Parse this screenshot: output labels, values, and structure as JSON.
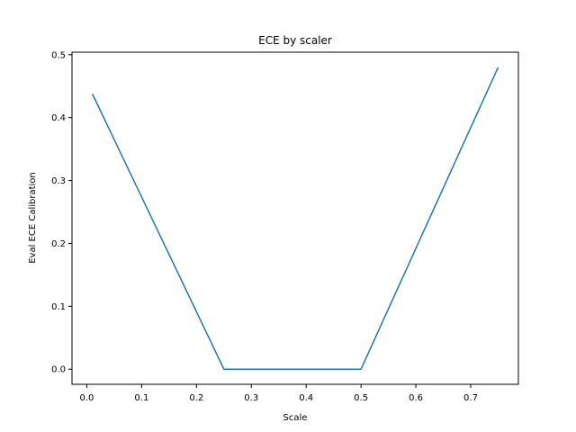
{
  "chart_data": {
    "type": "line",
    "title": "ECE by scaler",
    "xlabel": "Scale",
    "ylabel": "Eval ECE Calibration",
    "xlim": [
      -0.027,
      0.787
    ],
    "ylim": [
      -0.024,
      0.504
    ],
    "xticks": [
      0.0,
      0.1,
      0.2,
      0.3,
      0.4,
      0.5,
      0.6,
      0.7
    ],
    "xtick_labels": [
      "0.0",
      "0.1",
      "0.2",
      "0.3",
      "0.4",
      "0.5",
      "0.6",
      "0.7"
    ],
    "yticks": [
      0.0,
      0.1,
      0.2,
      0.3,
      0.4,
      0.5
    ],
    "ytick_labels": [
      "0.0",
      "0.1",
      "0.2",
      "0.3",
      "0.4",
      "0.5"
    ],
    "grid": false,
    "series": [
      {
        "color": "#1f77b4",
        "x": [
          0.01,
          0.25,
          0.5,
          0.75
        ],
        "y": [
          0.438,
          0.0,
          0.0,
          0.48
        ]
      }
    ]
  }
}
